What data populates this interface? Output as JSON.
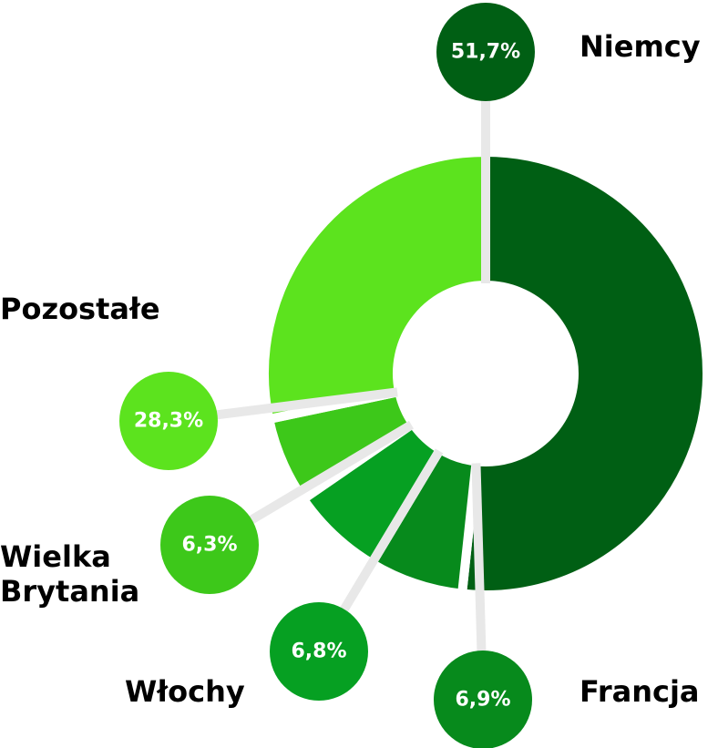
{
  "chart_data": {
    "type": "pie",
    "donut": true,
    "categories": [
      "Niemcy",
      "Francja",
      "Włochy",
      "Wielka Brytania",
      "Pozostałe"
    ],
    "values": [
      51.7,
      6.9,
      6.8,
      6.3,
      28.3
    ],
    "value_labels": [
      "51,7%",
      "6,9%",
      "6,8%",
      "6,3%",
      "28,3%"
    ],
    "colors": [
      "#005f14",
      "#078a1c",
      "#06a022",
      "#3dc81a",
      "#5ce31e"
    ]
  }
}
